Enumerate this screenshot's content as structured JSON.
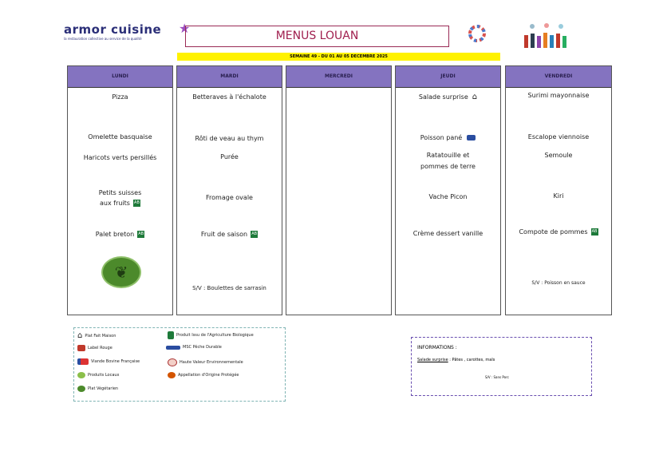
{
  "header": {
    "logo": "armor cuisine",
    "tagline": "la restauration collective au service de la qualité",
    "title": "MENUS LOUAN",
    "week": "SEMAINE 49 - DU 01 AU 05 DECEMBRE 2025"
  },
  "days": [
    {
      "name": "LUNDI",
      "items": [
        "Pizza",
        "Omelette basquaise",
        "Haricots verts persillés",
        "Petits suisses",
        "aux fruits",
        "Palet breton"
      ]
    },
    {
      "name": "MARDI",
      "items": [
        "Betteraves à l'échalote",
        "Rôti de veau au thym",
        "Purée",
        "Fromage ovale",
        "Fruit de saison",
        "S/V : Boulettes de sarrasin"
      ]
    },
    {
      "name": "MERCREDI",
      "items": []
    },
    {
      "name": "JEUDI",
      "items": [
        "Salade surprise",
        "Poisson pané",
        "Ratatouille et",
        "pommes de terre",
        "Vache Picon",
        "Crème dessert vanille"
      ]
    },
    {
      "name": "VENDREDI",
      "items": [
        "Surimi mayonnaise",
        "Escalope viennoise",
        "Semoule",
        "Kiri",
        "Compote de pommes",
        "S/V : Poisson en sauce"
      ]
    }
  ],
  "badges": {
    "ab": "AB"
  },
  "legend": [
    "Plat Fait Maison",
    "Label Rouge",
    "Viande Bovine Française",
    "Produits Locaux",
    "Plat Végétarien",
    "Produit Issu de l'Agriculture Biologique",
    "MSC Pêche Durable",
    "Haute Valeur Environnementale",
    "Appellation d'Origine Protégée"
  ],
  "info": {
    "title": "INFORMATIONS :",
    "label": "Salade surprise",
    "text": ": Pâtes , carottes, maïs",
    "sv": "S/V : Sans Porc"
  },
  "colors": {
    "header": "#8473c0",
    "title": "#a0204f",
    "week_bg": "#fff200",
    "logo": "#2b2f78"
  }
}
